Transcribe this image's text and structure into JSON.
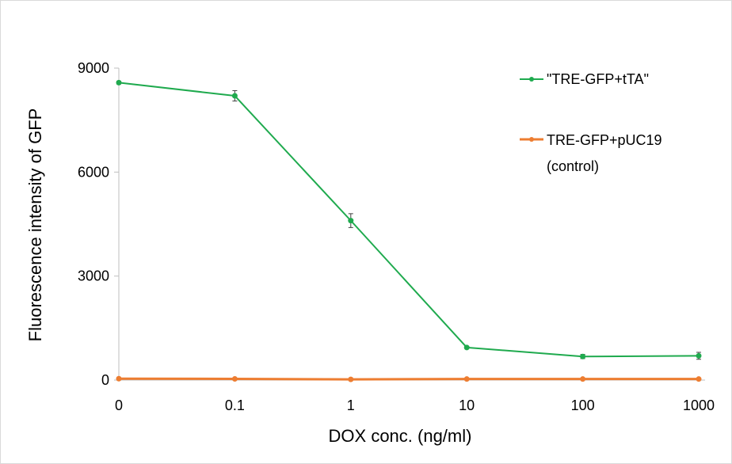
{
  "chart_data": {
    "type": "line",
    "title": "",
    "xlabel": "DOX conc. (ng/ml)",
    "ylabel": "Fluorescence intensity of GFP",
    "categories": [
      "0",
      "0.1",
      "1",
      "10",
      "100",
      "1000"
    ],
    "yticks": [
      "0",
      "3000",
      "6000",
      "9000"
    ],
    "ylim": [
      0,
      9000
    ],
    "grid": false,
    "legend_position": "top-right",
    "series": [
      {
        "name": "\"TRE-GFP+tTA\"",
        "color": "#1faa4e",
        "values": [
          8580,
          8200,
          4600,
          940,
          680,
          700
        ],
        "errors": [
          40,
          150,
          200,
          30,
          60,
          100
        ]
      },
      {
        "name": "TRE-GFP+pUC19 (control)",
        "name_lines": [
          "TRE-GFP+pUC19",
          "(control)"
        ],
        "color": "#ed7d31",
        "values": [
          40,
          35,
          20,
          30,
          30,
          30
        ],
        "errors": [
          0,
          0,
          0,
          0,
          0,
          0
        ]
      }
    ]
  }
}
